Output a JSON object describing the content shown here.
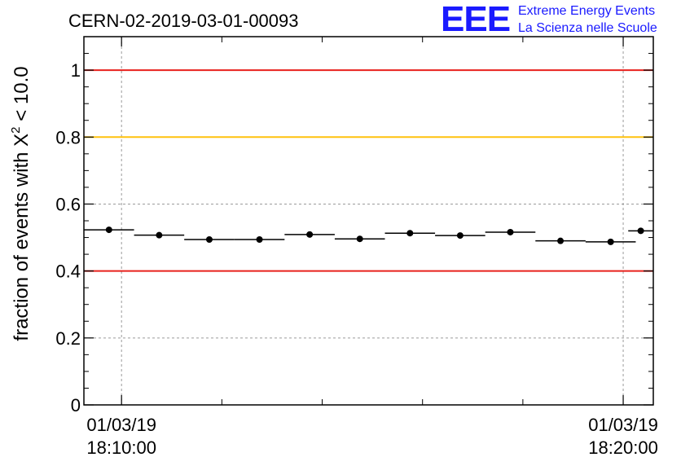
{
  "header": {
    "title": "CERN-02-2019-03-01-00093",
    "logo_mark": "EEE",
    "logo_line1": "Extreme Energy Events",
    "logo_line2": "La Scienza nelle Scuole"
  },
  "chart_data": {
    "type": "scatter",
    "title": "CERN-02-2019-03-01-00093",
    "ylabel_prefix": "fraction of events with ",
    "ylabel_symbol": "X",
    "ylabel_sup": "2",
    "ylabel_suffix": " < 10.0",
    "xlabel": "",
    "ylim": [
      0,
      1.1
    ],
    "yticks": [
      {
        "value": 0,
        "label": "0"
      },
      {
        "value": 0.2,
        "label": "0.2"
      },
      {
        "value": 0.4,
        "label": "0.4"
      },
      {
        "value": 0.6,
        "label": "0.6"
      },
      {
        "value": 0.8,
        "label": "0.8"
      },
      {
        "value": 1,
        "label": "1"
      }
    ],
    "xlim_minutes": [
      -0.75,
      10.6
    ],
    "xticks": [
      {
        "minute": 0,
        "date": "01/03/19",
        "time": "18:10:00"
      },
      {
        "minute": 10,
        "date": "01/03/19",
        "time": "18:20:00"
      }
    ],
    "minor_xticks_minutes": [
      2,
      4,
      6,
      8
    ],
    "grid": true,
    "reference_lines": [
      {
        "y": 1.0,
        "color": "#e8211d"
      },
      {
        "y": 0.8,
        "color": "#ffc20e"
      },
      {
        "y": 0.4,
        "color": "#e8211d"
      }
    ],
    "points": [
      {
        "minute": -0.25,
        "y": 0.523,
        "half_width_minutes": 0.5
      },
      {
        "minute": 0.75,
        "y": 0.507,
        "half_width_minutes": 0.5
      },
      {
        "minute": 1.75,
        "y": 0.494,
        "half_width_minutes": 0.5
      },
      {
        "minute": 2.75,
        "y": 0.494,
        "half_width_minutes": 0.5
      },
      {
        "minute": 3.75,
        "y": 0.509,
        "half_width_minutes": 0.5
      },
      {
        "minute": 4.75,
        "y": 0.496,
        "half_width_minutes": 0.5
      },
      {
        "minute": 5.75,
        "y": 0.513,
        "half_width_minutes": 0.5
      },
      {
        "minute": 6.75,
        "y": 0.506,
        "half_width_minutes": 0.5
      },
      {
        "minute": 7.75,
        "y": 0.516,
        "half_width_minutes": 0.5
      },
      {
        "minute": 8.75,
        "y": 0.49,
        "half_width_minutes": 0.5
      },
      {
        "minute": 9.75,
        "y": 0.487,
        "half_width_minutes": 0.5
      },
      {
        "minute": 10.35,
        "y": 0.52,
        "half_width_minutes": 0.25
      }
    ],
    "colors": {
      "axis": "#000000",
      "grid": "#9a9a9a",
      "points": "#000000"
    }
  }
}
